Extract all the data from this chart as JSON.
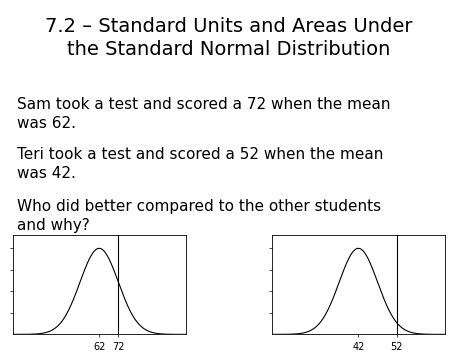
{
  "title_line1": "7.2 – Standard Units and Areas Under",
  "title_line2": "the Standard Normal Distribution",
  "line1": "Sam took a test and scored a 72 when the mean",
  "line2": "was 62.",
  "line3": "Teri took a test and scored a 52 when the mean",
  "line4": "was 42.",
  "line5": "Who did better compared to the other students",
  "line6": "and why?",
  "chart1_mean": 62,
  "chart1_std": 10,
  "chart1_score": 72,
  "chart1_xlabels": [
    "62",
    "72"
  ],
  "chart2_mean": 42,
  "chart2_std": 5,
  "chart2_score": 52,
  "chart2_xlabels": [
    "42",
    "52"
  ],
  "bg_color": "#ffffff",
  "text_color": "#000000",
  "title_fontsize": 14,
  "body_fontsize": 11
}
